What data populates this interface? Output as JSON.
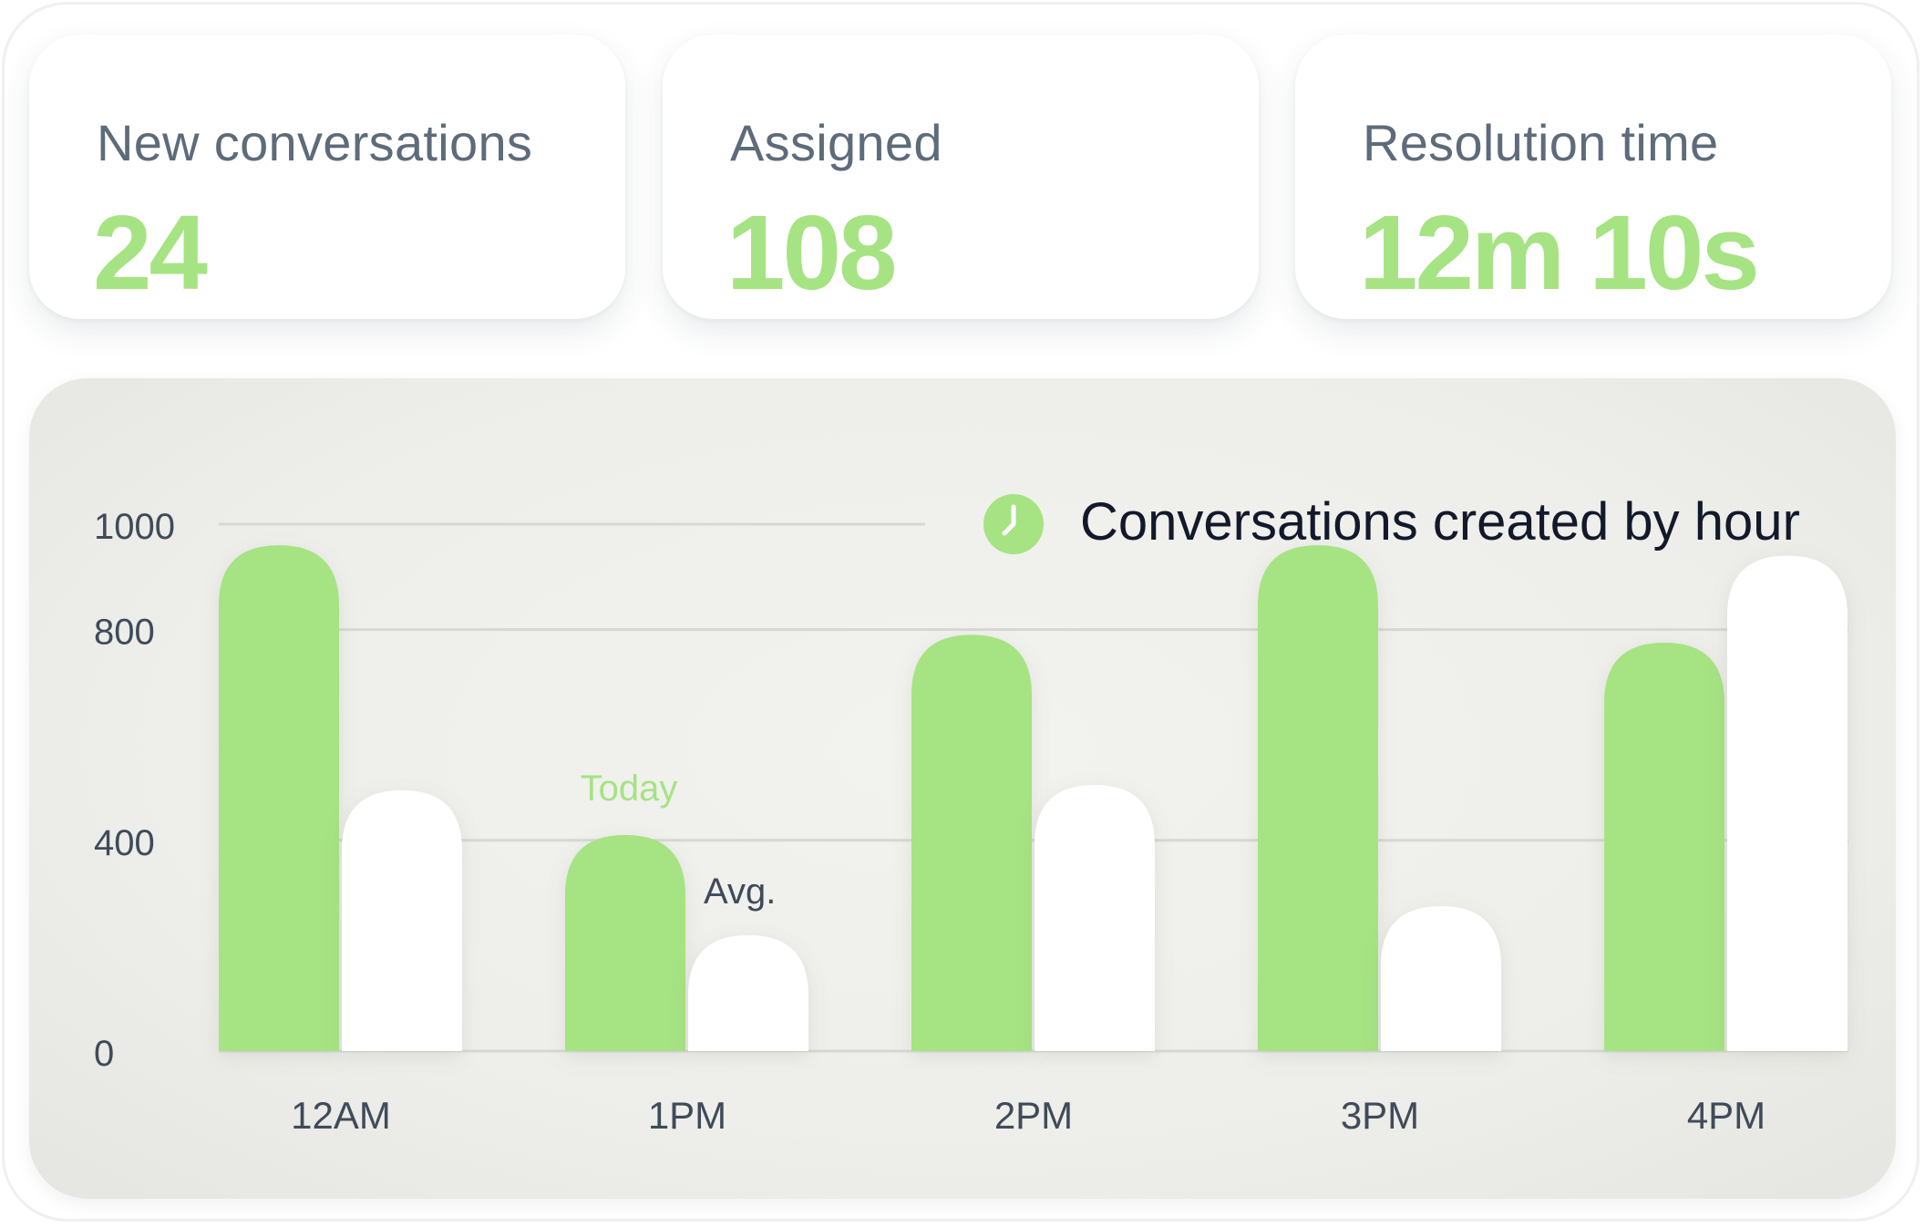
{
  "stats": [
    {
      "label": "New conversations",
      "value": "24"
    },
    {
      "label": "Assigned",
      "value": "108"
    },
    {
      "label": "Resolution time",
      "value": "12m 10s"
    }
  ],
  "chart_data": {
    "type": "bar",
    "title": "Conversations created by hour",
    "title_icon": "clock-icon",
    "categories": [
      "12AM",
      "1PM",
      "2PM",
      "3PM",
      "4PM"
    ],
    "y_ticks": [
      0,
      400,
      800,
      1000
    ],
    "ylim": [
      0,
      1000
    ],
    "grid": true,
    "series": [
      {
        "name": "Today",
        "color": "#a6e383",
        "values": [
          960,
          410,
          790,
          960,
          775
        ]
      },
      {
        "name": "Avg.",
        "color": "#ffffff",
        "values": [
          495,
          220,
          505,
          275,
          940
        ]
      }
    ],
    "legend_placement": "on-chart labels above second group"
  }
}
